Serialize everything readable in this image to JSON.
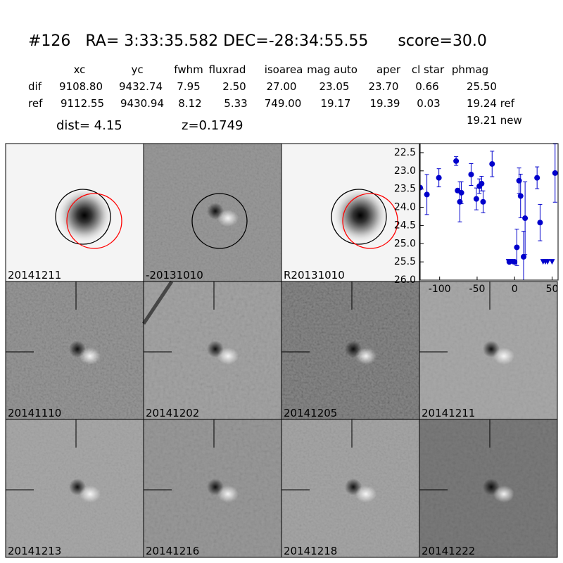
{
  "header": {
    "title": "#126   RA= 3:33:35.582 DEC=-28:34:55.55      score=30.0"
  },
  "table": {
    "columns": [
      "xc",
      "yc",
      "fwhm",
      "fluxrad",
      "isoarea",
      "mag auto",
      "aper",
      "cl star",
      "phmag"
    ],
    "rows": [
      {
        "name": "dif",
        "cells": [
          "9108.80",
          "9432.74",
          "7.95",
          "2.50",
          "27.00",
          "23.05",
          "23.70",
          "0.66",
          "25.50"
        ]
      },
      {
        "name": "ref",
        "cells": [
          "9112.55",
          "9430.94",
          "8.12",
          "5.33",
          "749.00",
          "19.17",
          "19.39",
          "0.03",
          "19.24 ref"
        ]
      }
    ],
    "extra": "19.21 new"
  },
  "dist": "dist=  4.15",
  "z": "z=0.1749",
  "panels": [
    {
      "label": "20141211"
    },
    {
      "label": "-20131010"
    },
    {
      "label": "R20131010"
    },
    {
      "label": "20141110"
    },
    {
      "label": "20141202"
    },
    {
      "label": "20141205"
    },
    {
      "label": "20141211",
      "color": "#ff0000"
    },
    {
      "label": "20141213"
    },
    {
      "label": "20141216"
    },
    {
      "label": "20141218"
    },
    {
      "label": "20141222"
    }
  ],
  "light_curve": {
    "type": "scatter",
    "color": "#0000cc",
    "x": [
      -126,
      -117,
      -101,
      -78,
      -76,
      -73,
      -71,
      -58,
      -51,
      -47,
      -44,
      -42,
      -30,
      -7,
      0,
      3,
      6,
      8,
      12,
      14,
      30,
      34,
      54
    ],
    "mag": [
      23.46,
      23.65,
      23.19,
      22.73,
      23.54,
      23.85,
      23.6,
      23.1,
      23.77,
      23.42,
      23.35,
      23.85,
      22.81,
      25.5,
      25.5,
      25.1,
      23.27,
      23.69,
      25.36,
      24.3,
      23.19,
      24.42,
      23.06
    ],
    "err": [
      0,
      0.55,
      0.25,
      0.12,
      0,
      0.55,
      0.3,
      0.3,
      0.3,
      0.2,
      0.2,
      0.3,
      0.35,
      0,
      0,
      0.5,
      0.35,
      0.6,
      0.7,
      1.0,
      0.3,
      0.5,
      0.8
    ],
    "limits_x": [
      -8,
      -6,
      -3,
      38,
      41,
      44,
      50
    ],
    "limits_mag": [
      25.5,
      25.5,
      25.5,
      25.5,
      25.5,
      25.5,
      25.5
    ],
    "xlim": [
      -126,
      58
    ],
    "ylim": [
      26.0,
      22.25
    ],
    "xticks": [
      -100,
      -50,
      0,
      50
    ],
    "yticks": [
      22.5,
      {
        "value": 23,
        "label": "23.0"
      },
      23.5,
      {
        "value": 24,
        "label": "24.0"
      },
      24.5,
      {
        "value": 25,
        "label": "25.0"
      },
      25.5,
      {
        "value": 26,
        "label": "26.0"
      }
    ]
  }
}
